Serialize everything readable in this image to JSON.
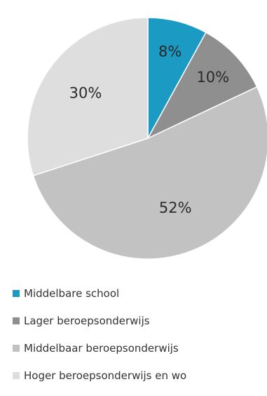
{
  "chart_data": {
    "type": "pie",
    "categories": [
      "Middelbare school",
      "Lager beroepsonderwijs",
      "Middelbaar beroepsonderwijs",
      "Hoger beroepsonderwijs en wo"
    ],
    "values": [
      8,
      10,
      52,
      30
    ],
    "labels": [
      "8%",
      "10%",
      "52%",
      "30%"
    ],
    "colors": [
      "#1b9bc4",
      "#8f8f8f",
      "#c2c2c2",
      "#dedede"
    ],
    "legend_position": "bottom-left"
  }
}
